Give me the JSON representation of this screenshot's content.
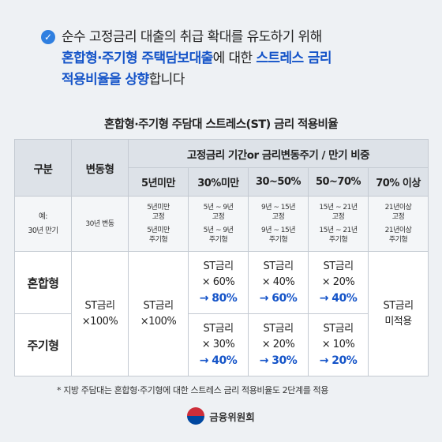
{
  "headline": {
    "line1": "순수 고정금리 대출의 취급 확대를 유도하기 위해",
    "line2_blue1": "혼합형·주기형 주택담보대출",
    "line2_rest": "에 대한 ",
    "line2_blue2": "스트레스 금리",
    "line3_blue": "적용비율을 상향",
    "line3_rest": "합니다"
  },
  "table_title": "혼합형·주기형 주담대 스트레스(ST) 금리 적용비율",
  "table": {
    "col_category": "구분",
    "col_variable": "변동형",
    "col_group": "고정금리 기간or 금리변동주기 / 만기 비중",
    "sub_headers": [
      "5년미만",
      "30%미만",
      "30~50%",
      "50~70%",
      "70% 이상"
    ],
    "example_label_1": "예:",
    "example_label_2": "30년 만기",
    "example_variable": "30년 변동",
    "examples": [
      {
        "a1": "5년미만",
        "a2": "고정",
        "b1": "5년미만",
        "b2": "주기형"
      },
      {
        "a1": "5년 ~ 9년",
        "a2": "고정",
        "b1": "5년 ~ 9년",
        "b2": "주기형"
      },
      {
        "a1": "9년 ~ 15년",
        "a2": "고정",
        "b1": "9년 ~ 15년",
        "b2": "주기형"
      },
      {
        "a1": "15년 ~ 21년",
        "a2": "고정",
        "b1": "15년 ~ 21년",
        "b2": "주기형"
      },
      {
        "a1": "21년이상",
        "a2": "고정",
        "b1": "21년이상",
        "b2": "주기형"
      }
    ],
    "row_mixed": "혼합형",
    "row_periodic": "주기형",
    "st_label": "ST금리",
    "variable_value": "×100%",
    "under5_value": "×100%",
    "mixed": [
      {
        "from": "× 60%",
        "to": "→ 80%"
      },
      {
        "from": "× 40%",
        "to": "→ 60%"
      },
      {
        "from": "× 20%",
        "to": "→ 40%"
      }
    ],
    "periodic": [
      {
        "from": "× 30%",
        "to": "→ 40%"
      },
      {
        "from": "× 20%",
        "to": "→ 30%"
      },
      {
        "from": "× 10%",
        "to": "→ 20%"
      }
    ],
    "over70_line1": "ST금리",
    "over70_line2": "미적용"
  },
  "footnote": "* 지방 주담대는 혼합형·주기형에 대한 스트레스 금리 적용비율도 2단계를 적용",
  "footer": {
    "logo_icon": "taegeuk-icon",
    "org": "금융위원회"
  },
  "colors": {
    "accent_blue": "#1554c8",
    "background": "#eef1f4",
    "header_bg": "#dde2e8"
  }
}
